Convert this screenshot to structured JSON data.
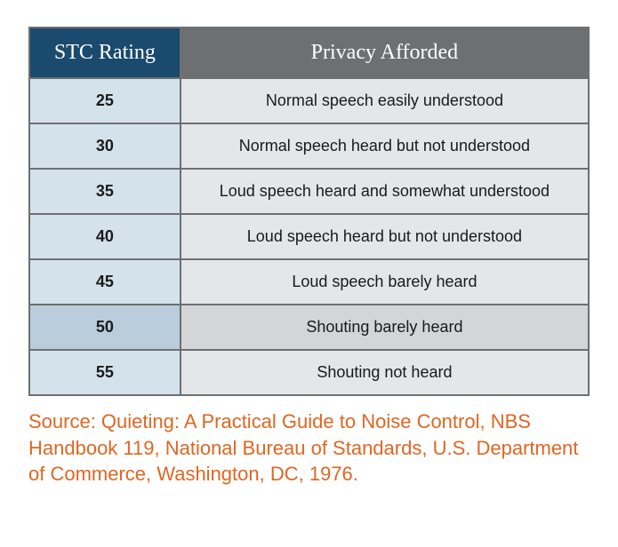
{
  "table": {
    "type": "table",
    "columns": [
      {
        "key": "rating",
        "label": "STC Rating",
        "width_pct": 27,
        "align": "center",
        "header_bg": "#1a4a6e",
        "cell_bg": "#d4e2ec",
        "cell_bg_alt": "#b9cddc"
      },
      {
        "key": "privacy",
        "label": "Privacy Afforded",
        "width_pct": 73,
        "align": "center",
        "header_bg": "#6e6f71",
        "cell_bg": "#e5e6e7",
        "cell_bg_alt": "#d4d5d7"
      }
    ],
    "rows": [
      {
        "rating": "25",
        "privacy": "Normal speech easily understood"
      },
      {
        "rating": "30",
        "privacy": "Normal speech heard but not understood"
      },
      {
        "rating": "35",
        "privacy": "Loud speech heard and somewhat understood"
      },
      {
        "rating": "40",
        "privacy": "Loud speech heard but not understood"
      },
      {
        "rating": "45",
        "privacy": "Loud speech barely heard"
      },
      {
        "rating": "50",
        "privacy": "Shouting barely heard"
      },
      {
        "rating": "55",
        "privacy": "Shouting not heard"
      }
    ],
    "header_fontsize": 24,
    "header_text_color": "#ffffff",
    "cell_fontsize": 18,
    "cell_text_color": "#1a1a1a",
    "border_color": "#6e6f71",
    "border_width": 2,
    "alt_row_index": 5
  },
  "source": {
    "text": "Source: Quieting: A Practical Guide to Noise Control, NBS Handbook 119, National Bureau of Standards, U.S. Department of Commerce, Washington, DC, 1976.",
    "color": "#e06622",
    "fontsize": 22
  },
  "background_color": "#ffffff"
}
